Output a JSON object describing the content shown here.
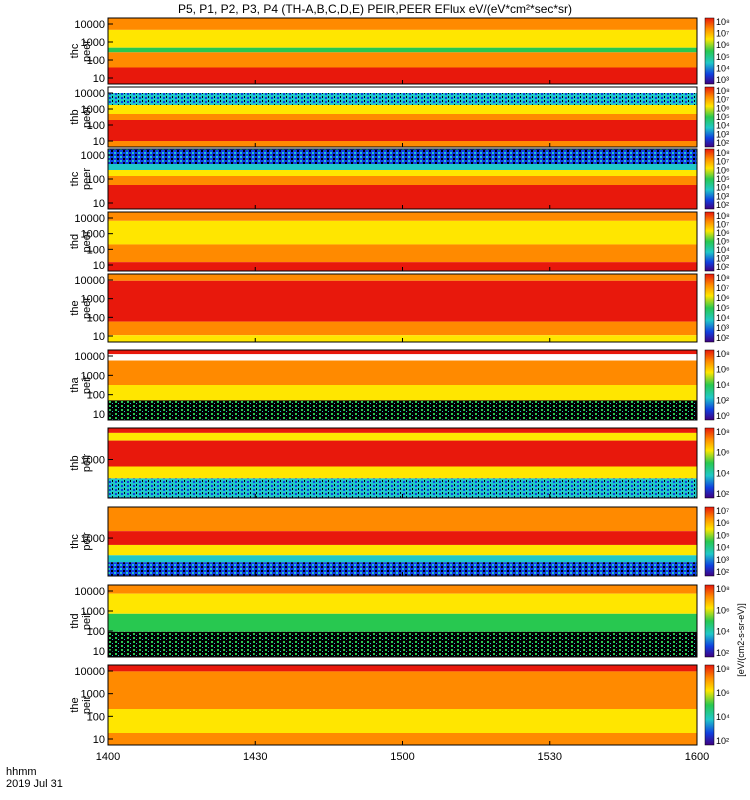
{
  "title": "P5, P1, P2, P3, P4 (TH-A,B,C,D,E) PEIR,PEER EFlux eV/(eV*cm²*sec*sr)",
  "time_label": "hhmm",
  "date_label": "2019 Jul 31",
  "colorbar_unit": "[eV/(cm2-s-sr-eV)]",
  "colors": {
    "red": "#e8180c",
    "orange": "#ff8a00",
    "yellow": "#ffe600",
    "green": "#28c850",
    "cyan": "#20c8c8",
    "blue": "#1040e0",
    "black": "#000000",
    "white": "#ffffff"
  },
  "chart_data": {
    "type": "heatmap",
    "x": {
      "ticks": [
        "1400",
        "1430",
        "1500",
        "1530",
        "1600"
      ],
      "range": [
        "14:00",
        "16:00"
      ]
    },
    "panels": [
      {
        "label": [
          "thc",
          "peer"
        ],
        "yticks": [
          "10000",
          "1000",
          "100",
          "10"
        ],
        "ylog": true,
        "cbar_ticks": [
          "10⁸",
          "10⁷",
          "10⁶",
          "10⁵",
          "10⁴",
          "10³"
        ]
      },
      {
        "label": [
          "thb",
          "peer"
        ],
        "yticks": [
          "10000",
          "1000",
          "100",
          "10"
        ],
        "ylog": true,
        "cbar_ticks": [
          "10⁸",
          "10⁷",
          "10⁶",
          "10⁵",
          "10⁴",
          "10³",
          "10²"
        ]
      },
      {
        "label": [
          "thc",
          "peer"
        ],
        "yticks": [
          "1000",
          "100",
          "10"
        ],
        "ylog": true,
        "cbar_ticks": [
          "10⁸",
          "10⁷",
          "10⁶",
          "10⁵",
          "10⁴",
          "10³",
          "10²"
        ]
      },
      {
        "label": [
          "thd",
          "peer"
        ],
        "yticks": [
          "10000",
          "1000",
          "100",
          "10"
        ],
        "ylog": true,
        "cbar_ticks": [
          "10⁸",
          "10⁷",
          "10⁶",
          "10⁵",
          "10⁴",
          "10³",
          "10²"
        ]
      },
      {
        "label": [
          "the",
          "peer"
        ],
        "yticks": [
          "10000",
          "1000",
          "100",
          "10"
        ],
        "ylog": true,
        "cbar_ticks": [
          "10⁸",
          "10⁷",
          "10⁶",
          "10⁵",
          "10⁴",
          "10³",
          "10²"
        ]
      },
      {
        "label": [
          "tha",
          "peir"
        ],
        "yticks": [
          "10000",
          "1000",
          "100",
          "10"
        ],
        "ylog": true,
        "cbar_ticks": [
          "10⁸",
          "10⁶",
          "10⁴",
          "10²",
          "10⁰"
        ]
      },
      {
        "label": [
          "thb",
          "peir"
        ],
        "yticks": [
          "1000"
        ],
        "ylog": true,
        "cbar_ticks": [
          "10⁸",
          "10⁶",
          "10⁴",
          "10²"
        ]
      },
      {
        "label": [
          "thc",
          "peir"
        ],
        "yticks": [
          "1000"
        ],
        "ylog": true,
        "cbar_ticks": [
          "10⁷",
          "10⁶",
          "10⁵",
          "10⁴",
          "10³",
          "10²"
        ]
      },
      {
        "label": [
          "thd",
          "peir"
        ],
        "yticks": [
          "10000",
          "1000",
          "100",
          "10"
        ],
        "ylog": true,
        "cbar_ticks": [
          "10⁸",
          "10⁶",
          "10⁴",
          "10²"
        ]
      },
      {
        "label": [
          "the",
          "peir"
        ],
        "yticks": [
          "10000",
          "1000",
          "100",
          "10"
        ],
        "ylog": true,
        "cbar_ticks": [
          "10⁸",
          "10⁶",
          "10⁴",
          "10²"
        ]
      }
    ]
  }
}
